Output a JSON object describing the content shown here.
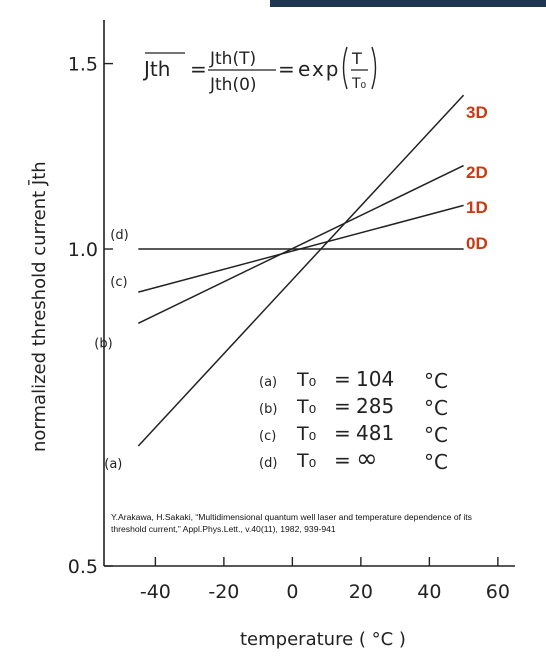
{
  "colors": {
    "topbar": "#1f3654",
    "dim_label": "#c83a12",
    "ink": "#222222"
  },
  "chart_data": {
    "type": "line",
    "xlabel": "temperature ( °C )",
    "ylabel": "normalized threshold current J̄th",
    "xlim": [
      -55,
      65
    ],
    "ylim": [
      0.5,
      1.65
    ],
    "y_scale": "log",
    "grid": false,
    "x_ticks": [
      -40,
      -20,
      0,
      20,
      40,
      60
    ],
    "x_tick_labels": [
      "-40",
      "-20",
      "0",
      "20",
      "40",
      "60"
    ],
    "y_ticks": [
      0.5,
      1.0,
      1.5
    ],
    "y_tick_labels": [
      "0.5",
      "1.0",
      "1.5"
    ],
    "formula": {
      "lhs": "Jth",
      "num": "Jth(T)",
      "den": "Jth(0)",
      "func": "exp",
      "frac_num": "T",
      "frac_den": "T₀"
    },
    "series": [
      {
        "name": "(a)",
        "T0": "104",
        "x": [
          -45,
          50
        ],
        "y": [
          0.65,
          1.4
        ]
      },
      {
        "name": "(b)",
        "T0": "285",
        "x": [
          -45,
          50
        ],
        "y": [
          0.85,
          1.2
        ]
      },
      {
        "name": "(c)",
        "T0": "481",
        "x": [
          -45,
          50
        ],
        "y": [
          0.91,
          1.1
        ]
      },
      {
        "name": "(d)",
        "T0": "∞",
        "x": [
          -45,
          50
        ],
        "y": [
          1.0,
          1.0
        ]
      }
    ],
    "legend": [
      {
        "name": "(a)",
        "symbol": "T₀",
        "eq": "=",
        "value": "104",
        "unit": "°C"
      },
      {
        "name": "(b)",
        "symbol": "T₀",
        "eq": "=",
        "value": "285",
        "unit": "°C"
      },
      {
        "name": "(c)",
        "symbol": "T₀",
        "eq": "=",
        "value": "481",
        "unit": "°C"
      },
      {
        "name": "(d)",
        "symbol": "T₀",
        "eq": "=",
        "value": "∞",
        "unit": "°C"
      }
    ],
    "dimension_labels": [
      "3D",
      "2D",
      "1D",
      "0D"
    ]
  },
  "citation": "Y.Arakawa, H.Sakaki, “Multidimensional quantum well laser and temperature dependence of its threshold current,” Appl.Phys.Lett., v.40(11), 1982, 939-941"
}
